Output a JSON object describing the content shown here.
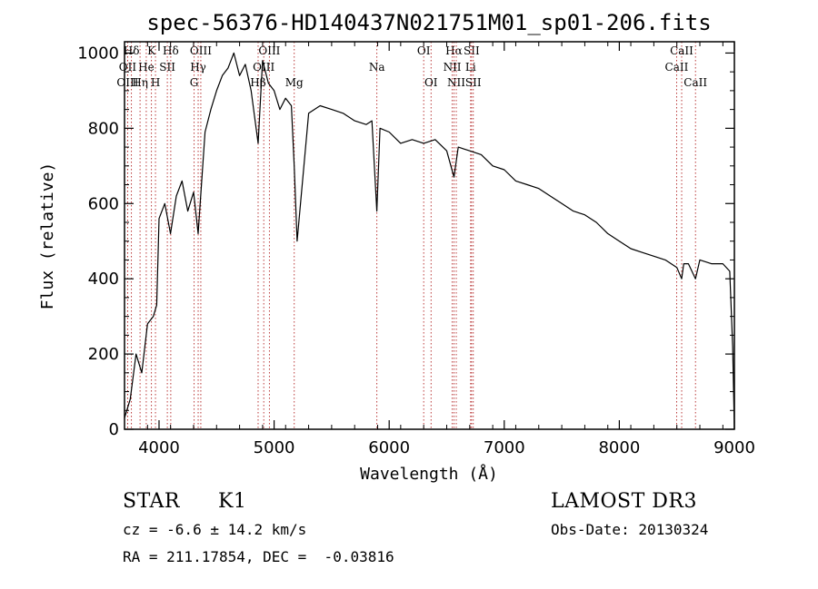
{
  "chart_data": {
    "type": "line",
    "title": "spec-56376-HD140437N021751M01_sp01-206.fits",
    "xlabel": "Wavelength (Å)",
    "ylabel": "Flux (relative)",
    "xlim": [
      3700,
      9000
    ],
    "ylim": [
      0,
      1030
    ],
    "xticks": [
      4000,
      5000,
      6000,
      7000,
      8000,
      9000
    ],
    "yticks": [
      0,
      200,
      400,
      600,
      800,
      1000
    ],
    "series": [
      {
        "name": "spectrum",
        "color": "#000000",
        "x": [
          3700,
          3750,
          3800,
          3850,
          3900,
          3950,
          3980,
          4000,
          4050,
          4100,
          4150,
          4200,
          4250,
          4300,
          4340,
          4400,
          4450,
          4500,
          4550,
          4600,
          4650,
          4700,
          4750,
          4800,
          4861,
          4900,
          4950,
          5000,
          5050,
          5100,
          5150,
          5175,
          5200,
          5300,
          5400,
          5500,
          5600,
          5700,
          5800,
          5850,
          5893,
          5920,
          6000,
          6100,
          6200,
          6300,
          6400,
          6500,
          6563,
          6600,
          6700,
          6800,
          6900,
          7000,
          7100,
          7200,
          7300,
          7400,
          7500,
          7600,
          7700,
          7800,
          7900,
          8000,
          8100,
          8200,
          8300,
          8400,
          8500,
          8542,
          8560,
          8600,
          8662,
          8700,
          8800,
          8900,
          8960,
          8985,
          9000
        ],
        "y": [
          30,
          80,
          200,
          150,
          280,
          300,
          330,
          560,
          600,
          520,
          620,
          660,
          580,
          630,
          520,
          790,
          850,
          900,
          940,
          960,
          1000,
          940,
          970,
          900,
          760,
          980,
          920,
          900,
          850,
          880,
          860,
          700,
          500,
          840,
          860,
          850,
          840,
          820,
          810,
          820,
          580,
          800,
          790,
          760,
          770,
          760,
          770,
          740,
          670,
          750,
          740,
          730,
          700,
          690,
          660,
          650,
          640,
          620,
          600,
          580,
          570,
          550,
          520,
          500,
          480,
          470,
          460,
          450,
          430,
          400,
          440,
          440,
          400,
          450,
          440,
          440,
          420,
          220,
          0
        ]
      }
    ],
    "line_markers": [
      {
        "label": "Hδ",
        "x": 3760,
        "tier": 0
      },
      {
        "label": "OII",
        "x": 3727,
        "tier": 1
      },
      {
        "label": "OIII",
        "x": 3727,
        "tier": 2
      },
      {
        "label": "K",
        "x": 3934,
        "tier": 0
      },
      {
        "label": "He",
        "x": 3889,
        "tier": 1
      },
      {
        "label": "Hη",
        "x": 3835,
        "tier": 2
      },
      {
        "label": "Hδ",
        "x": 4102,
        "tier": 0
      },
      {
        "label": "SII",
        "x": 4072,
        "tier": 1
      },
      {
        "label": "H",
        "x": 3969,
        "tier": 2
      },
      {
        "label": "OIII",
        "x": 4363,
        "tier": 0
      },
      {
        "label": "Hγ",
        "x": 4340,
        "tier": 1
      },
      {
        "label": "G",
        "x": 4305,
        "tier": 2
      },
      {
        "label": "OIII",
        "x": 4959,
        "tier": 0
      },
      {
        "label": "OIII",
        "x": 4910,
        "tier": 1
      },
      {
        "label": "Hβ",
        "x": 4861,
        "tier": 2
      },
      {
        "label": "Mg",
        "x": 5175,
        "tier": 2
      },
      {
        "label": "Na",
        "x": 5893,
        "tier": 1
      },
      {
        "label": "OI",
        "x": 6300,
        "tier": 0
      },
      {
        "label": "OI",
        "x": 6364,
        "tier": 2
      },
      {
        "label": "Hα",
        "x": 6563,
        "tier": 0
      },
      {
        "label": "SII",
        "x": 6716,
        "tier": 0
      },
      {
        "label": "NII",
        "x": 6548,
        "tier": 1
      },
      {
        "label": "Li",
        "x": 6708,
        "tier": 1
      },
      {
        "label": "NII",
        "x": 6583,
        "tier": 2
      },
      {
        "label": "SII",
        "x": 6731,
        "tier": 2
      },
      {
        "label": "CaII",
        "x": 8542,
        "tier": 0
      },
      {
        "label": "CaII",
        "x": 8498,
        "tier": 1
      },
      {
        "label": "CaII",
        "x": 8662,
        "tier": 2
      }
    ]
  },
  "info": {
    "object_class": "STAR",
    "subclass": "K1",
    "survey": "LAMOST DR3",
    "redshift": "cz = -6.6 ± 14.2 km/s",
    "obs_date": "Obs-Date: 20130324",
    "coords": "RA = 211.17854, DEC =  -0.03816"
  }
}
